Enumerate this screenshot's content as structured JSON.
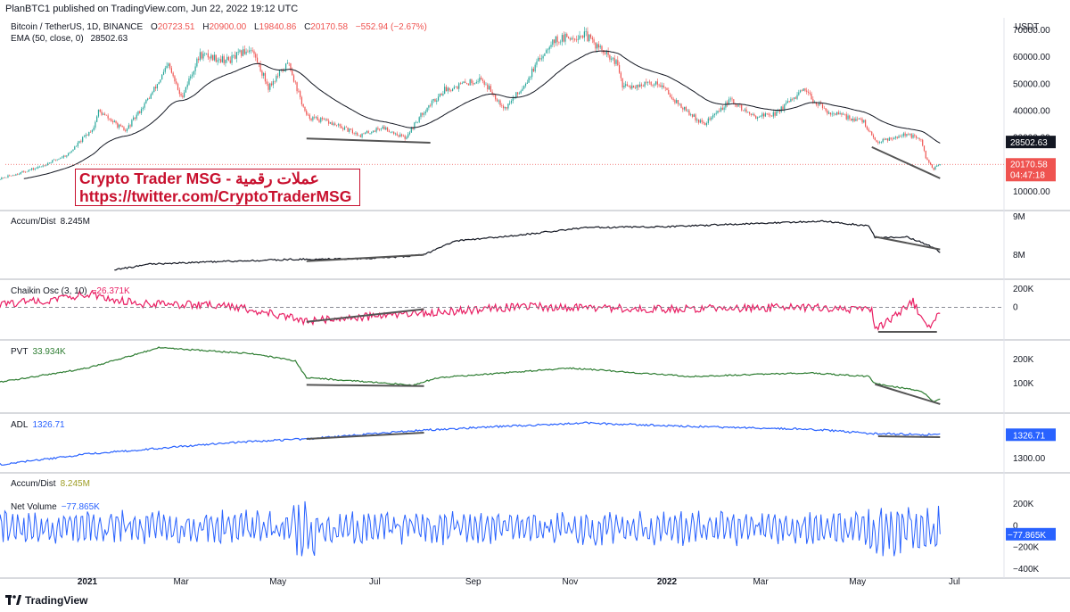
{
  "header": {
    "published": "PlanBTC1 published on TradingView.com, Jun 22, 2022 19:12 UTC",
    "symbol": "Bitcoin / TetherUS, 1D, BINANCE",
    "ohlc": {
      "o_label": "O",
      "o": "20723.51",
      "h_label": "H",
      "h": "20900.00",
      "l_label": "L",
      "l": "19840.86",
      "c_label": "C",
      "c": "20170.58",
      "chg": "−552.94 (−2.67%)"
    },
    "ema_label": "EMA (50, close, 0)",
    "ema_value": "28502.63"
  },
  "banner": {
    "line1": "Crypto Trader MSG - عملات رقمية",
    "line2": "https://twitter.com/CryptoTraderMSG"
  },
  "panes": {
    "accum_dist": {
      "label": "Accum/Dist",
      "value": "8.245M"
    },
    "chaikin": {
      "label": "Chaikin Osc (3, 10)",
      "value": "−26.371K"
    },
    "pvt": {
      "label": "PVT",
      "value": "33.934K"
    },
    "adl": {
      "label": "ADL",
      "value": "1326.71"
    },
    "accum_dist_2": {
      "label": "Accum/Dist",
      "value": "8.245M"
    },
    "net_volume": {
      "label": "Net Volume",
      "value": "−77.865K"
    }
  },
  "price_axis": {
    "unit": "USDT",
    "ticks": [
      "70000.00",
      "60000.00",
      "50000.00",
      "40000.00",
      "30000.00",
      "20000.00",
      "10000.00"
    ],
    "ema_tag": "28502.63",
    "price_tag": "20170.58",
    "countdown": "04:47:18"
  },
  "ad_axis": {
    "ticks": [
      "9M",
      "8M"
    ]
  },
  "chaikin_axis": {
    "ticks": [
      "200K",
      "0"
    ]
  },
  "pvt_axis": {
    "ticks": [
      "200K",
      "100K"
    ]
  },
  "adl_axis": {
    "ticks": [
      "1326.71",
      "1300.00"
    ],
    "tag": "1326.71"
  },
  "nv_axis": {
    "ticks": [
      "200K",
      "0",
      "−200K",
      "−400K"
    ],
    "tag": "−77.865K"
  },
  "time_axis": {
    "labels": [
      "2021",
      "Mar",
      "May",
      "Jul",
      "Sep",
      "Nov",
      "2022",
      "Mar",
      "May",
      "Jul"
    ]
  },
  "footer": {
    "brand": "TradingView"
  },
  "colors": {
    "up": "#26a69a",
    "down": "#ef5350",
    "ema": "#131722",
    "chaikin": "#e91e63",
    "pvt": "#2e7d32",
    "adl": "#2962ff",
    "net_volume": "#2962ff",
    "price_tag": "#ef5350",
    "banner": "#c8102e"
  },
  "chart_data": [
    {
      "type": "candlestick",
      "title": "Bitcoin / TetherUS, 1D, BINANCE",
      "ylim": [
        5000,
        72000
      ],
      "x_range": [
        "2020-11-01",
        "2022-06-22"
      ],
      "close_points": [
        [
          "2020-11-01",
          13800
        ],
        [
          "2020-12-01",
          19000
        ],
        [
          "2020-12-20",
          24000
        ],
        [
          "2021-01-05",
          34000
        ],
        [
          "2021-01-08",
          40000
        ],
        [
          "2021-01-25",
          32500
        ],
        [
          "2021-02-10",
          46000
        ],
        [
          "2021-02-21",
          57000
        ],
        [
          "2021-03-01",
          45000
        ],
        [
          "2021-03-13",
          61000
        ],
        [
          "2021-03-31",
          58800
        ],
        [
          "2021-04-14",
          63500
        ],
        [
          "2021-04-25",
          49000
        ],
        [
          "2021-05-08",
          58000
        ],
        [
          "2021-05-12",
          50000
        ],
        [
          "2021-05-19",
          38000
        ],
        [
          "2021-06-01",
          36000
        ],
        [
          "2021-06-22",
          31000
        ],
        [
          "2021-07-06",
          34000
        ],
        [
          "2021-07-20",
          30000
        ],
        [
          "2021-08-01",
          40000
        ],
        [
          "2021-08-14",
          48000
        ],
        [
          "2021-09-06",
          52000
        ],
        [
          "2021-09-21",
          41000
        ],
        [
          "2021-10-01",
          48000
        ],
        [
          "2021-10-20",
          66000
        ],
        [
          "2021-11-10",
          68500
        ],
        [
          "2021-12-01",
          57000
        ],
        [
          "2021-12-04",
          49000
        ],
        [
          "2021-12-27",
          50500
        ],
        [
          "2022-01-10",
          41500
        ],
        [
          "2022-01-24",
          35000
        ],
        [
          "2022-02-10",
          44000
        ],
        [
          "2022-02-24",
          38000
        ],
        [
          "2022-03-10",
          39000
        ],
        [
          "2022-03-28",
          47500
        ],
        [
          "2022-04-11",
          40000
        ],
        [
          "2022-05-05",
          36000
        ],
        [
          "2022-05-12",
          28500
        ],
        [
          "2022-06-01",
          31500
        ],
        [
          "2022-06-10",
          29000
        ],
        [
          "2022-06-13",
          22500
        ],
        [
          "2022-06-18",
          18500
        ],
        [
          "2022-06-22",
          20170.58
        ]
      ],
      "series": [
        {
          "name": "EMA (50, close, 0)",
          "last": 28502.63
        }
      ],
      "annotations": [
        "Crypto Trader MSG - عملات رقمية",
        "https://twitter.com/CryptoTraderMSG"
      ]
    },
    {
      "type": "line",
      "title": "Accum/Dist",
      "ylim": [
        7.8,
        9.0
      ],
      "points": [
        [
          "2021-01-18",
          7.85
        ],
        [
          "2021-02-10",
          7.98
        ],
        [
          "2021-03-15",
          8.02
        ],
        [
          "2021-05-10",
          8.08
        ],
        [
          "2021-07-01",
          8.1
        ],
        [
          "2021-08-01",
          8.18
        ],
        [
          "2021-08-20",
          8.48
        ],
        [
          "2021-10-01",
          8.62
        ],
        [
          "2021-11-10",
          8.78
        ],
        [
          "2022-01-01",
          8.8
        ],
        [
          "2022-03-01",
          8.88
        ],
        [
          "2022-04-10",
          8.92
        ],
        [
          "2022-05-08",
          8.82
        ],
        [
          "2022-05-12",
          8.56
        ],
        [
          "2022-06-01",
          8.58
        ],
        [
          "2022-06-14",
          8.4
        ],
        [
          "2022-06-22",
          8.245
        ]
      ]
    },
    {
      "type": "line",
      "title": "Chaikin Osc (3, 10)",
      "ylim": [
        -300,
        250
      ],
      "points": [
        [
          "2020-11-01",
          30
        ],
        [
          "2020-12-15",
          90
        ],
        [
          "2021-01-01",
          150
        ],
        [
          "2021-02-01",
          40
        ],
        [
          "2021-04-01",
          20
        ],
        [
          "2021-05-19",
          -150
        ],
        [
          "2021-07-20",
          -80
        ],
        [
          "2021-10-01",
          10
        ],
        [
          "2022-01-01",
          -20
        ],
        [
          "2022-04-01",
          0
        ],
        [
          "2022-05-10",
          -30
        ],
        [
          "2022-05-12",
          -260
        ],
        [
          "2022-05-28",
          -60
        ],
        [
          "2022-06-05",
          60
        ],
        [
          "2022-06-14",
          -240
        ],
        [
          "2022-06-22",
          -26.371
        ]
      ]
    },
    {
      "type": "line",
      "title": "PVT",
      "ylim": [
        0,
        260
      ],
      "points": [
        [
          "2020-11-01",
          100
        ],
        [
          "2021-01-01",
          165
        ],
        [
          "2021-02-15",
          250
        ],
        [
          "2021-04-15",
          225
        ],
        [
          "2021-05-12",
          195
        ],
        [
          "2021-05-19",
          125
        ],
        [
          "2021-07-25",
          95
        ],
        [
          "2021-08-10",
          125
        ],
        [
          "2021-11-01",
          165
        ],
        [
          "2022-01-15",
          130
        ],
        [
          "2022-04-01",
          145
        ],
        [
          "2022-05-08",
          130
        ],
        [
          "2022-05-12",
          100
        ],
        [
          "2022-06-10",
          70
        ],
        [
          "2022-06-18",
          25
        ],
        [
          "2022-06-22",
          33.934
        ]
      ]
    },
    {
      "type": "line",
      "title": "ADL",
      "ylim": [
        1290,
        1345
      ],
      "points": [
        [
          "2020-11-01",
          1292
        ],
        [
          "2021-01-01",
          1305
        ],
        [
          "2021-04-01",
          1318
        ],
        [
          "2021-05-19",
          1322
        ],
        [
          "2021-08-01",
          1332
        ],
        [
          "2021-11-10",
          1340
        ],
        [
          "2022-01-15",
          1336
        ],
        [
          "2022-04-01",
          1333
        ],
        [
          "2022-05-10",
          1328
        ],
        [
          "2022-06-22",
          1326.71
        ]
      ]
    },
    {
      "type": "line",
      "title": "Net Volume",
      "ylim": [
        -400,
        200
      ],
      "range_description": "oscillates roughly between −250K and 200K",
      "points": [
        [
          "2022-06-22",
          -77.865
        ]
      ]
    }
  ]
}
